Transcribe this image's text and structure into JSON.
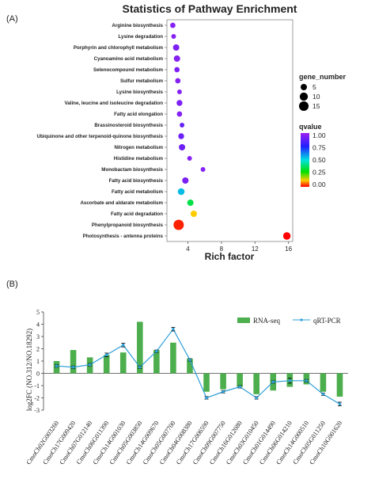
{
  "panels": {
    "a_label": "(A)",
    "b_label": "(B)"
  },
  "chart_data": [
    {
      "type": "scatter",
      "title": "Statistics of Pathway Enrichment",
      "xlabel": "Rich factor",
      "ylabel": "",
      "xlim": [
        1.5,
        16.5
      ],
      "xticks": [
        4,
        8,
        12,
        16
      ],
      "pathways": [
        "Arginine biosynthesis",
        "Lysine degradation",
        "Porphyrin and chlorophyll metabolism",
        "Cyanoamino acid metabolism",
        "Selenocompound metabolism",
        "Sulfur metabolism",
        "Lysine biosynthesis",
        "Valine, leucine and isoleucine degradation",
        "Fatty acid elongation",
        "Brassinosteroid biosynthesis",
        "Ubiquinone and other terpenoid-quinone biosynthesis",
        "Nitrogen metabolism",
        "Histidine metabolism",
        "Monobactam biosynthesis",
        "Fatty acid biosynthesis",
        "Fatty acid metabolism",
        "Ascorbate and aldarate metabolism",
        "Fatty acid degradation",
        "Phenylpropanoid biosynthesis",
        "Photosynthesis - antenna proteins"
      ],
      "rich_factor": [
        2.2,
        2.3,
        2.6,
        2.7,
        2.7,
        2.8,
        3.0,
        3.0,
        3.0,
        3.3,
        3.2,
        3.3,
        4.2,
        5.8,
        3.7,
        3.2,
        4.3,
        4.7,
        2.9,
        15.8
      ],
      "gene_number": [
        3,
        2,
        5,
        5,
        3,
        3,
        2,
        4,
        3,
        2,
        4,
        5,
        2,
        2,
        5,
        6,
        5,
        5,
        18,
        8
      ],
      "qvalue": [
        0.95,
        0.95,
        0.93,
        0.95,
        0.93,
        0.95,
        0.95,
        0.93,
        0.95,
        0.88,
        0.9,
        0.9,
        0.95,
        0.95,
        0.93,
        0.55,
        0.35,
        0.12,
        0.02,
        0.0
      ],
      "size_legend": {
        "title": "gene_number",
        "values": [
          5,
          10,
          15
        ]
      },
      "color_legend": {
        "title": "qvalue",
        "ticks": [
          "1.00",
          "0.75",
          "0.50",
          "0.25",
          "0.00"
        ]
      }
    },
    {
      "type": "bar",
      "ylabel": "log2FC (NO.312/NO.18292)",
      "ylim": [
        -3,
        5
      ],
      "yticks": [
        -3,
        -2,
        -1,
        0,
        1,
        2,
        3,
        4,
        5
      ],
      "categories": [
        "CmoCh02G003260",
        "CmoCh17G009420",
        "CmoCh07G012140",
        "CmoCh06G011390",
        "CmoCh14G001030",
        "CmoCh05G003850",
        "CmoCh14G009670",
        "CmoCh05G007700",
        "CmoCh04G008380",
        "CmoCh17G006590",
        "CmoCh09G007750",
        "CmoCh16G012080",
        "CmoCh03G010450",
        "CmoCh01G014490",
        "CmoCh06G014210",
        "CmoCh14G000510",
        "CmoCh05G011250",
        "CmoCh10G001620"
      ],
      "series": [
        {
          "name": "RNA-seq",
          "kind": "bar",
          "color": "#4cae4c",
          "values": [
            1.0,
            1.9,
            1.3,
            1.5,
            1.7,
            4.2,
            1.9,
            2.5,
            1.2,
            -1.5,
            -1.3,
            -1.1,
            -1.7,
            -1.4,
            -1.1,
            -0.9,
            -1.5,
            -1.9
          ]
        },
        {
          "name": "qRT-PCR",
          "kind": "line",
          "color": "#2e9fd8",
          "values": [
            0.6,
            0.5,
            0.7,
            1.5,
            2.3,
            0.5,
            1.8,
            3.6,
            1.1,
            -2.0,
            -1.5,
            -1.1,
            -2.0,
            -0.7,
            -0.6,
            -0.6,
            -1.7,
            -2.5
          ],
          "errors": [
            0.1,
            0.1,
            0.1,
            0.15,
            0.15,
            0.1,
            0.1,
            0.15,
            0.1,
            0.1,
            0.1,
            0.1,
            0.1,
            0.1,
            0.2,
            0.1,
            0.1,
            0.15
          ]
        }
      ],
      "legend_placement": "top-right"
    }
  ]
}
